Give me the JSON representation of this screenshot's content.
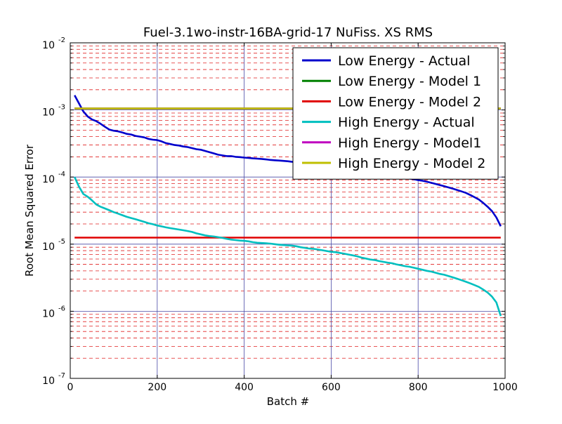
{
  "chart_data": {
    "type": "line",
    "title": "Fuel-3.1wo-instr-16BA-grid-17 NuFiss. XS RMS",
    "xlabel": "Batch #",
    "ylabel": "Root Mean Squared Error",
    "xlim": [
      0,
      1000
    ],
    "ylim": [
      1e-07,
      0.01
    ],
    "yscale": "log",
    "x_ticks": [
      0,
      200,
      400,
      600,
      800,
      1000
    ],
    "x_tick_labels": [
      "0",
      "200",
      "400",
      "600",
      "800",
      "1000"
    ],
    "y_ticks": [
      1e-07,
      1e-06,
      1e-05,
      0.0001,
      0.001,
      0.01
    ],
    "y_tick_labels": [
      {
        "base": "10",
        "exp": "-7"
      },
      {
        "base": "10",
        "exp": "-6"
      },
      {
        "base": "10",
        "exp": "-5"
      },
      {
        "base": "10",
        "exp": "-4"
      },
      {
        "base": "10",
        "exp": "-3"
      },
      {
        "base": "10",
        "exp": "-2"
      }
    ],
    "grid": {
      "major": true,
      "minor_y": true,
      "major_color": "#4a4aa6",
      "minor_color": "#e02020"
    },
    "legend_position": "top-right",
    "series": [
      {
        "name": "Low Energy - Actual",
        "color": "#0000cc",
        "x": [
          10,
          20,
          30,
          40,
          50,
          60,
          70,
          80,
          90,
          100,
          110,
          120,
          130,
          140,
          150,
          160,
          170,
          180,
          190,
          200,
          210,
          220,
          230,
          240,
          250,
          260,
          270,
          280,
          290,
          300,
          310,
          320,
          330,
          340,
          350,
          360,
          370,
          380,
          390,
          400,
          410,
          420,
          430,
          440,
          450,
          460,
          470,
          480,
          490,
          500,
          700,
          710,
          720,
          730,
          740,
          750,
          760,
          770,
          780,
          790,
          800,
          810,
          820,
          830,
          840,
          850,
          860,
          870,
          880,
          890,
          900,
          910,
          920,
          930,
          940,
          950,
          960,
          970,
          980,
          990
        ],
        "y": [
          0.00165,
          0.00125,
          0.00095,
          0.0008,
          0.00072,
          0.00068,
          0.00062,
          0.00056,
          0.00051,
          0.00049,
          0.00048,
          0.00046,
          0.00044,
          0.00043,
          0.00041,
          0.0004,
          0.00039,
          0.00037,
          0.00036,
          0.000355,
          0.00034,
          0.00032,
          0.00031,
          0.0003,
          0.000295,
          0.000285,
          0.00028,
          0.00027,
          0.00026,
          0.000255,
          0.000245,
          0.000235,
          0.000225,
          0.000215,
          0.00021,
          0.000205,
          0.000205,
          0.0002,
          0.000198,
          0.000195,
          0.000193,
          0.00019,
          0.000188,
          0.000186,
          0.000183,
          0.00018,
          0.000178,
          0.000176,
          0.000174,
          0.000172,
          0.000118,
          0.000115,
          0.000112,
          0.00011,
          0.000107,
          0.000104,
          0.000101,
          9.8e-05,
          9.5e-05,
          9.3e-05,
          9e-05,
          8.8e-05,
          8.5e-05,
          8.2e-05,
          7.9e-05,
          7.6e-05,
          7.3e-05,
          7e-05,
          6.7e-05,
          6.4e-05,
          6.1e-05,
          5.8e-05,
          5.4e-05,
          5e-05,
          4.6e-05,
          4.1e-05,
          3.6e-05,
          3.1e-05,
          2.5e-05,
          1.85e-05
        ]
      },
      {
        "name": "Low Energy - Model 1",
        "color": "#008000",
        "x": [
          10,
          990
        ],
        "y": [
          0.00105,
          0.00105
        ]
      },
      {
        "name": "Low Energy - Model 2",
        "color": "#e00000",
        "x": [
          10,
          990
        ],
        "y": [
          1.25e-05,
          1.25e-05
        ]
      },
      {
        "name": "High Energy - Actual",
        "color": "#00bfbf",
        "x": [
          10,
          20,
          30,
          40,
          50,
          60,
          70,
          80,
          90,
          100,
          110,
          120,
          130,
          140,
          150,
          160,
          170,
          180,
          190,
          200,
          210,
          220,
          230,
          240,
          250,
          260,
          270,
          280,
          290,
          300,
          310,
          320,
          330,
          340,
          350,
          360,
          370,
          380,
          390,
          400,
          410,
          420,
          430,
          440,
          450,
          460,
          470,
          480,
          490,
          500,
          510,
          520,
          530,
          540,
          550,
          560,
          570,
          580,
          590,
          600,
          610,
          620,
          630,
          640,
          650,
          660,
          670,
          680,
          690,
          700,
          710,
          720,
          730,
          740,
          750,
          760,
          770,
          780,
          790,
          800,
          810,
          820,
          830,
          840,
          850,
          860,
          870,
          880,
          890,
          900,
          910,
          920,
          930,
          940,
          950,
          960,
          970,
          980,
          990
        ],
        "y": [
          0.0001,
          7.2e-05,
          5.6e-05,
          5.1e-05,
          4.5e-05,
          3.9e-05,
          3.6e-05,
          3.4e-05,
          3.2e-05,
          3e-05,
          2.85e-05,
          2.7e-05,
          2.55e-05,
          2.45e-05,
          2.35e-05,
          2.25e-05,
          2.15e-05,
          2.05e-05,
          1.98e-05,
          1.9e-05,
          1.84e-05,
          1.78e-05,
          1.73e-05,
          1.69e-05,
          1.65e-05,
          1.61e-05,
          1.57e-05,
          1.52e-05,
          1.45e-05,
          1.4e-05,
          1.35e-05,
          1.32e-05,
          1.3e-05,
          1.27e-05,
          1.24e-05,
          1.2e-05,
          1.17e-05,
          1.15e-05,
          1.13e-05,
          1.12e-05,
          1.1e-05,
          1.07e-05,
          1.05e-05,
          1.04e-05,
          1.03e-05,
          1.02e-05,
          1e-05,
          9.8e-06,
          9.7e-06,
          9.6e-06,
          9.5e-06,
          9.3e-06,
          9e-06,
          8.8e-06,
          8.6e-06,
          8.5e-06,
          8.3e-06,
          8.1e-06,
          7.9e-06,
          7.7e-06,
          7.6e-06,
          7.4e-06,
          7.2e-06,
          7e-06,
          6.8e-06,
          6.6e-06,
          6.3e-06,
          6.1e-06,
          5.9e-06,
          5.8e-06,
          5.6e-06,
          5.45e-06,
          5.3e-06,
          5.2e-06,
          5e-06,
          4.85e-06,
          4.7e-06,
          4.6e-06,
          4.45e-06,
          4.3e-06,
          4.15e-06,
          4e-06,
          3.9e-06,
          3.75e-06,
          3.6e-06,
          3.5e-06,
          3.35e-06,
          3.2e-06,
          3.05e-06,
          2.9e-06,
          2.75e-06,
          2.6e-06,
          2.45e-06,
          2.3e-06,
          2.1e-06,
          1.9e-06,
          1.65e-06,
          1.35e-06,
          8.5e-07
        ]
      },
      {
        "name": "High Energy - Model1",
        "color": "#bf00bf",
        "x": [
          10,
          990
        ],
        "y": [
          0.00105,
          0.00105
        ]
      },
      {
        "name": "High Energy - Model 2",
        "color": "#bfbf00",
        "x": [
          10,
          990
        ],
        "y": [
          0.00105,
          0.00105
        ]
      }
    ]
  }
}
